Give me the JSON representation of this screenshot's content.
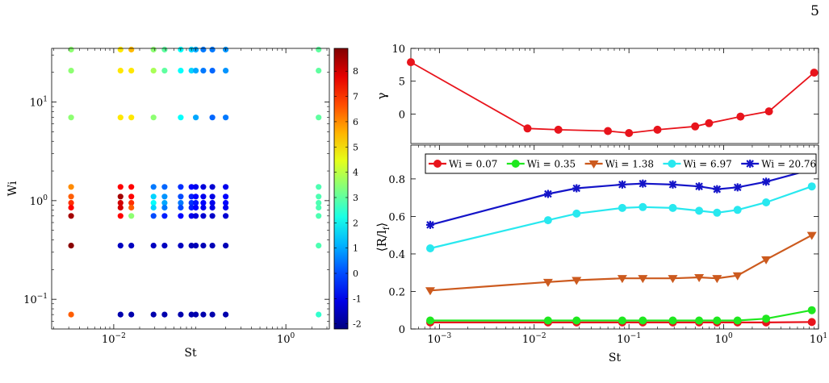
{
  "page_number": "5",
  "chart_data": [
    {
      "type": "scatter",
      "xlabel": "St",
      "ylabel": "Wi",
      "xscale": "log",
      "yscale": "log",
      "xlim": [
        0.0019,
        3.2
      ],
      "ylim": [
        0.05,
        35
      ],
      "x_ticks": [
        {
          "value": 0.01,
          "label": "10",
          "exp": "−2"
        },
        {
          "value": 1,
          "label": "10",
          "exp": "0"
        }
      ],
      "y_ticks": [
        {
          "value": 0.1,
          "label": "10",
          "exp": "−1"
        },
        {
          "value": 1,
          "label": "10",
          "exp": "0"
        },
        {
          "value": 10,
          "label": "10",
          "exp": "1"
        }
      ],
      "colorbar": {
        "colormap": "jet",
        "range": [
          -2.2,
          8.9
        ],
        "ticks": [
          "-2",
          "-1",
          "0",
          "1",
          "2",
          "3",
          "4",
          "5",
          "6",
          "7",
          "8"
        ]
      },
      "points": [
        {
          "x": 0.0032,
          "y": 34.0,
          "c": 3.5
        },
        {
          "x": 0.0032,
          "y": 20.8,
          "c": 3.5
        },
        {
          "x": 0.0032,
          "y": 6.97,
          "c": 3.5
        },
        {
          "x": 0.0032,
          "y": 1.38,
          "c": 6.0
        },
        {
          "x": 0.0032,
          "y": 1.1,
          "c": 6.5
        },
        {
          "x": 0.0032,
          "y": 0.95,
          "c": 7.0
        },
        {
          "x": 0.0032,
          "y": 0.85,
          "c": 7.5
        },
        {
          "x": 0.0032,
          "y": 0.7,
          "c": 8.5
        },
        {
          "x": 0.0032,
          "y": 0.35,
          "c": 8.8
        },
        {
          "x": 0.0032,
          "y": 0.07,
          "c": 6.5
        },
        {
          "x": 0.012,
          "y": 34.0,
          "c": 5.0
        },
        {
          "x": 0.012,
          "y": 20.8,
          "c": 5.0
        },
        {
          "x": 0.012,
          "y": 6.97,
          "c": 5.0
        },
        {
          "x": 0.012,
          "y": 1.38,
          "c": 7.5
        },
        {
          "x": 0.012,
          "y": 1.1,
          "c": 8.5
        },
        {
          "x": 0.012,
          "y": 0.95,
          "c": 8.0
        },
        {
          "x": 0.012,
          "y": 0.85,
          "c": 8.0
        },
        {
          "x": 0.012,
          "y": 0.7,
          "c": 7.5
        },
        {
          "x": 0.012,
          "y": 0.35,
          "c": -1.5
        },
        {
          "x": 0.012,
          "y": 0.07,
          "c": -1.7
        },
        {
          "x": 0.016,
          "y": 34.0,
          "c": 5.5
        },
        {
          "x": 0.016,
          "y": 20.8,
          "c": 5.0
        },
        {
          "x": 0.016,
          "y": 6.97,
          "c": 5.0
        },
        {
          "x": 0.016,
          "y": 1.38,
          "c": 7.5
        },
        {
          "x": 0.016,
          "y": 1.1,
          "c": 7.5
        },
        {
          "x": 0.016,
          "y": 0.95,
          "c": 7.0
        },
        {
          "x": 0.016,
          "y": 0.85,
          "c": 6.5
        },
        {
          "x": 0.016,
          "y": 0.7,
          "c": 3.5
        },
        {
          "x": 0.016,
          "y": 0.35,
          "c": -1.5
        },
        {
          "x": 0.016,
          "y": 0.07,
          "c": -1.7
        },
        {
          "x": 0.029,
          "y": 34.0,
          "c": 3.5
        },
        {
          "x": 0.029,
          "y": 20.8,
          "c": 3.8
        },
        {
          "x": 0.029,
          "y": 6.97,
          "c": 3.5
        },
        {
          "x": 0.029,
          "y": 1.38,
          "c": 0.5
        },
        {
          "x": 0.029,
          "y": 1.1,
          "c": 1.5
        },
        {
          "x": 0.029,
          "y": 0.95,
          "c": 2.0
        },
        {
          "x": 0.029,
          "y": 0.85,
          "c": 1.5
        },
        {
          "x": 0.029,
          "y": 0.7,
          "c": 0.0
        },
        {
          "x": 0.029,
          "y": 0.35,
          "c": -1.5
        },
        {
          "x": 0.029,
          "y": 0.07,
          "c": -1.7
        },
        {
          "x": 0.039,
          "y": 34.0,
          "c": 3.0
        },
        {
          "x": 0.039,
          "y": 20.8,
          "c": 3.0
        },
        {
          "x": 0.039,
          "y": 1.38,
          "c": 0.3
        },
        {
          "x": 0.039,
          "y": 1.1,
          "c": 0.8
        },
        {
          "x": 0.039,
          "y": 0.95,
          "c": 1.0
        },
        {
          "x": 0.039,
          "y": 0.85,
          "c": 0.5
        },
        {
          "x": 0.039,
          "y": 0.7,
          "c": -0.5
        },
        {
          "x": 0.039,
          "y": 0.35,
          "c": -1.5
        },
        {
          "x": 0.039,
          "y": 0.07,
          "c": -1.7
        },
        {
          "x": 0.06,
          "y": 34.0,
          "c": 2.0
        },
        {
          "x": 0.06,
          "y": 20.8,
          "c": 2.0
        },
        {
          "x": 0.06,
          "y": 6.97,
          "c": 2.0
        },
        {
          "x": 0.06,
          "y": 1.38,
          "c": -0.3
        },
        {
          "x": 0.06,
          "y": 1.1,
          "c": 0.0
        },
        {
          "x": 0.06,
          "y": 0.95,
          "c": 0.5
        },
        {
          "x": 0.06,
          "y": 0.85,
          "c": 0.0
        },
        {
          "x": 0.06,
          "y": 0.7,
          "c": -0.8
        },
        {
          "x": 0.06,
          "y": 0.35,
          "c": -1.5
        },
        {
          "x": 0.06,
          "y": 0.07,
          "c": -1.7
        },
        {
          "x": 0.08,
          "y": 34.0,
          "c": 1.5
        },
        {
          "x": 0.08,
          "y": 20.8,
          "c": 1.5
        },
        {
          "x": 0.08,
          "y": 1.38,
          "c": -0.8
        },
        {
          "x": 0.08,
          "y": 1.1,
          "c": -0.5
        },
        {
          "x": 0.08,
          "y": 0.95,
          "c": -0.3
        },
        {
          "x": 0.08,
          "y": 0.85,
          "c": -0.5
        },
        {
          "x": 0.08,
          "y": 0.7,
          "c": -1.0
        },
        {
          "x": 0.08,
          "y": 0.35,
          "c": -1.6
        },
        {
          "x": 0.08,
          "y": 0.07,
          "c": -1.7
        },
        {
          "x": 0.09,
          "y": 34.0,
          "c": 1.0
        },
        {
          "x": 0.09,
          "y": 20.8,
          "c": 1.0
        },
        {
          "x": 0.09,
          "y": 6.97,
          "c": 1.0
        },
        {
          "x": 0.09,
          "y": 1.38,
          "c": -1.0
        },
        {
          "x": 0.09,
          "y": 1.1,
          "c": -0.8
        },
        {
          "x": 0.09,
          "y": 0.95,
          "c": -0.6
        },
        {
          "x": 0.09,
          "y": 0.85,
          "c": -0.8
        },
        {
          "x": 0.09,
          "y": 0.7,
          "c": -1.2
        },
        {
          "x": 0.09,
          "y": 0.35,
          "c": -1.6
        },
        {
          "x": 0.09,
          "y": 0.07,
          "c": -1.7
        },
        {
          "x": 0.11,
          "y": 34.0,
          "c": 0.5
        },
        {
          "x": 0.11,
          "y": 20.8,
          "c": 0.5
        },
        {
          "x": 0.11,
          "y": 1.38,
          "c": -1.2
        },
        {
          "x": 0.11,
          "y": 1.1,
          "c": -1.0
        },
        {
          "x": 0.11,
          "y": 0.95,
          "c": -0.8
        },
        {
          "x": 0.11,
          "y": 0.85,
          "c": -1.0
        },
        {
          "x": 0.11,
          "y": 0.7,
          "c": -1.3
        },
        {
          "x": 0.11,
          "y": 0.35,
          "c": -1.6
        },
        {
          "x": 0.11,
          "y": 0.07,
          "c": -1.7
        },
        {
          "x": 0.14,
          "y": 34.0,
          "c": 0.5
        },
        {
          "x": 0.14,
          "y": 20.8,
          "c": 0.3
        },
        {
          "x": 0.14,
          "y": 6.97,
          "c": 0.3
        },
        {
          "x": 0.14,
          "y": 1.38,
          "c": -1.3
        },
        {
          "x": 0.14,
          "y": 1.1,
          "c": -1.1
        },
        {
          "x": 0.14,
          "y": 0.95,
          "c": -1.0
        },
        {
          "x": 0.14,
          "y": 0.85,
          "c": -1.1
        },
        {
          "x": 0.14,
          "y": 0.7,
          "c": -1.4
        },
        {
          "x": 0.14,
          "y": 0.35,
          "c": -1.6
        },
        {
          "x": 0.14,
          "y": 0.07,
          "c": -1.7
        },
        {
          "x": 0.2,
          "y": 34.0,
          "c": 0.8
        },
        {
          "x": 0.2,
          "y": 20.8,
          "c": 0.8
        },
        {
          "x": 0.2,
          "y": 6.97,
          "c": 0.5
        },
        {
          "x": 0.2,
          "y": 1.38,
          "c": -1.0
        },
        {
          "x": 0.2,
          "y": 1.1,
          "c": -0.8
        },
        {
          "x": 0.2,
          "y": 0.95,
          "c": -0.8
        },
        {
          "x": 0.2,
          "y": 0.85,
          "c": -1.0
        },
        {
          "x": 0.2,
          "y": 0.7,
          "c": -1.3
        },
        {
          "x": 0.2,
          "y": 0.35,
          "c": -1.6
        },
        {
          "x": 0.2,
          "y": 0.07,
          "c": -1.7
        },
        {
          "x": 2.4,
          "y": 34.0,
          "c": 3.0
        },
        {
          "x": 2.4,
          "y": 20.8,
          "c": 3.0
        },
        {
          "x": 2.4,
          "y": 6.97,
          "c": 3.0
        },
        {
          "x": 2.4,
          "y": 1.38,
          "c": 2.8
        },
        {
          "x": 2.4,
          "y": 1.1,
          "c": 2.8
        },
        {
          "x": 2.4,
          "y": 0.95,
          "c": 2.8
        },
        {
          "x": 2.4,
          "y": 0.85,
          "c": 2.8
        },
        {
          "x": 2.4,
          "y": 0.7,
          "c": 2.8
        },
        {
          "x": 2.4,
          "y": 0.35,
          "c": 2.8
        },
        {
          "x": 2.4,
          "y": 0.07,
          "c": 2.5
        }
      ]
    },
    {
      "type": "line",
      "ylabel": "γ",
      "xscale": "log",
      "xlim": [
        0.0005,
        10
      ],
      "ylim": [
        -4.5,
        10
      ],
      "y_ticks": [
        {
          "value": 0,
          "label": "0"
        },
        {
          "value": 5,
          "label": "5"
        },
        {
          "value": 10,
          "label": "10"
        }
      ],
      "series": [
        {
          "color": "#e8141c",
          "marker": "circle",
          "x": [
            0.0005,
            0.0085,
            0.018,
            0.06,
            0.1,
            0.2,
            0.5,
            0.7,
            1.5,
            3,
            9
          ],
          "y": [
            7.9,
            -2.2,
            -2.4,
            -2.6,
            -2.9,
            -2.4,
            -1.9,
            -1.4,
            -0.4,
            0.4,
            6.3
          ]
        }
      ]
    },
    {
      "type": "line",
      "xlabel": "St",
      "ylabel": "⟨R/l",
      "ylabel_sub": "f",
      "ylabel_end": "⟩",
      "xscale": "log",
      "xlim": [
        0.0005,
        10
      ],
      "ylim": [
        0,
        0.98
      ],
      "x_ticks": [
        {
          "value": 0.001,
          "label": "10",
          "exp": "−3"
        },
        {
          "value": 0.01,
          "label": "10",
          "exp": "−2"
        },
        {
          "value": 0.1,
          "label": "10",
          "exp": "−1"
        },
        {
          "value": 1,
          "label": "10",
          "exp": "0"
        },
        {
          "value": 10,
          "label": "10",
          "exp": "1"
        }
      ],
      "y_ticks": [
        {
          "value": 0,
          "label": "0"
        },
        {
          "value": 0.2,
          "label": "0.2"
        },
        {
          "value": 0.4,
          "label": "0.4"
        },
        {
          "value": 0.6,
          "label": "0.6"
        },
        {
          "value": 0.8,
          "label": "0.8"
        }
      ],
      "legend_position": "top",
      "x": [
        0.0008,
        0.014,
        0.028,
        0.085,
        0.14,
        0.29,
        0.55,
        0.85,
        1.4,
        2.8,
        8.5
      ],
      "series": [
        {
          "name": "Wi = 0.07",
          "color": "#e8141c",
          "marker": "circle",
          "y": [
            0.035,
            0.035,
            0.035,
            0.035,
            0.035,
            0.035,
            0.035,
            0.035,
            0.035,
            0.035,
            0.037
          ]
        },
        {
          "name": "Wi = 0.35",
          "color": "#1fe81f",
          "marker": "circle",
          "y": [
            0.045,
            0.045,
            0.045,
            0.045,
            0.045,
            0.045,
            0.045,
            0.045,
            0.045,
            0.055,
            0.1
          ]
        },
        {
          "name": "Wi = 1.38",
          "color": "#cc5a1e",
          "marker": "triangle-down",
          "y": [
            0.205,
            0.25,
            0.26,
            0.27,
            0.27,
            0.27,
            0.275,
            0.27,
            0.285,
            0.37,
            0.5
          ]
        },
        {
          "name": "Wi = 6.97",
          "color": "#28e8ef",
          "marker": "circle",
          "y": [
            0.43,
            0.58,
            0.615,
            0.645,
            0.65,
            0.645,
            0.63,
            0.62,
            0.635,
            0.675,
            0.76
          ]
        },
        {
          "name": "Wi = 20.76",
          "color": "#1414c8",
          "marker": "asterisk",
          "y": [
            0.555,
            0.72,
            0.75,
            0.77,
            0.775,
            0.77,
            0.76,
            0.745,
            0.755,
            0.785,
            0.85
          ]
        }
      ]
    }
  ]
}
